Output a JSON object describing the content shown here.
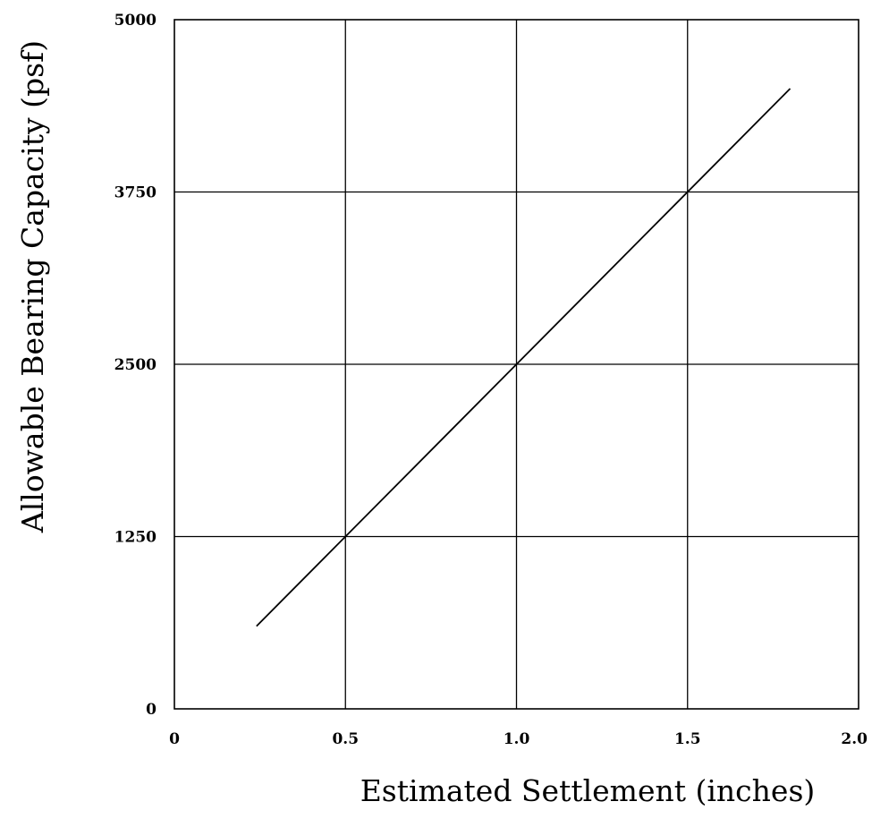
{
  "chart_data": {
    "type": "line",
    "title": "",
    "xlabel": "Estimated Settlement (inches)",
    "ylabel": "Allowable Bearing Capacity (psf)",
    "xlim": [
      0,
      2.0
    ],
    "ylim": [
      0,
      5000
    ],
    "x_ticks": [
      "0",
      "0.5",
      "1.0",
      "1.5",
      "2.0"
    ],
    "x_tick_values": [
      0,
      0.5,
      1.0,
      1.5,
      2.0
    ],
    "y_ticks": [
      "0",
      "1250",
      "2500",
      "3750",
      "5000"
    ],
    "y_tick_values": [
      0,
      1250,
      2500,
      3750,
      5000
    ],
    "grid": true,
    "legend": "none",
    "series": [
      {
        "x": [
          0.24,
          0.5,
          1.0,
          1.5,
          1.8
        ],
        "y": [
          600,
          1250,
          2500,
          3750,
          4500
        ]
      }
    ],
    "colors": {
      "line": "#000000",
      "grid": "#000000",
      "background": "#ffffff"
    }
  }
}
